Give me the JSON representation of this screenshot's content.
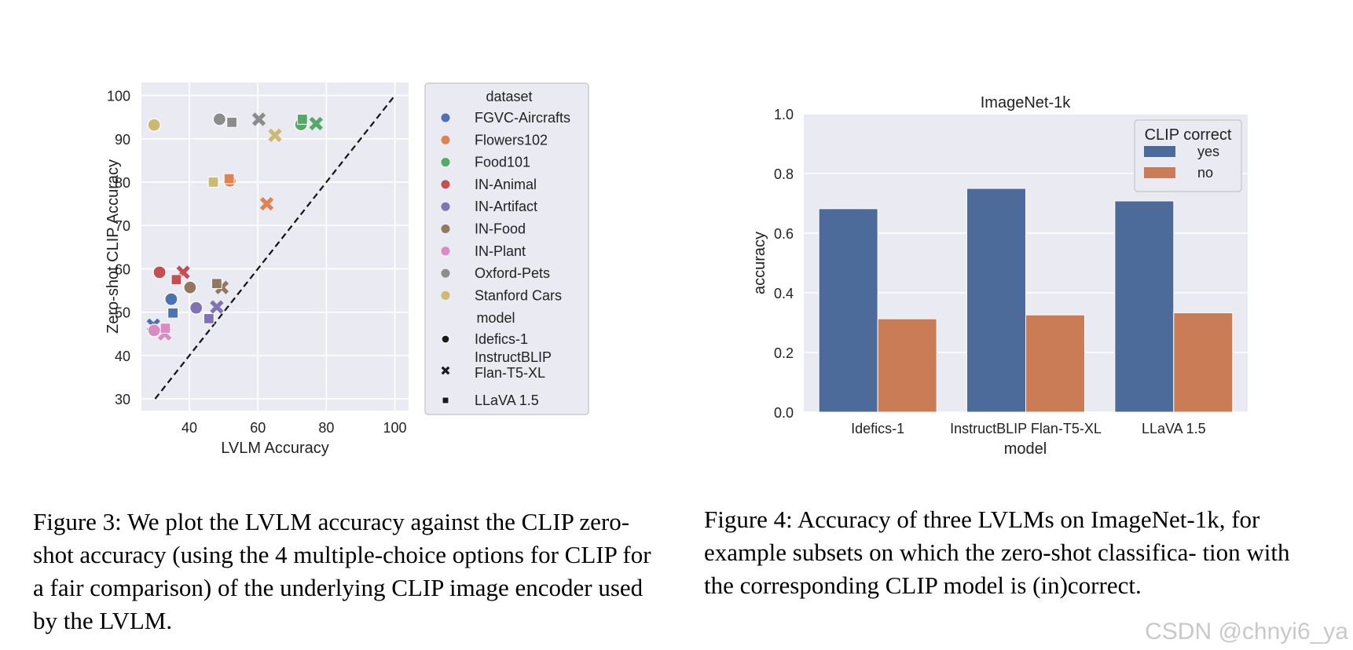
{
  "chart_data": [
    {
      "type": "scatter",
      "xlabel": "LVLM Accuracy",
      "ylabel": "Zero-shot CLIP Accuracy",
      "xlim": [
        26,
        104
      ],
      "ylim": [
        27.3,
        103
      ],
      "xticks": [
        40,
        60,
        80,
        100
      ],
      "yticks": [
        30,
        40,
        50,
        60,
        70,
        80,
        90,
        100
      ],
      "grid": true,
      "legend": {
        "placement": "right, outside",
        "dataset_title": "dataset",
        "model_title": "model",
        "datasets": [
          {
            "name": "FGVC-Aircrafts",
            "color": "#4c72b0"
          },
          {
            "name": "Flowers102",
            "color": "#dd8452"
          },
          {
            "name": "Food101",
            "color": "#55a868"
          },
          {
            "name": "IN-Animal",
            "color": "#c44e52"
          },
          {
            "name": "IN-Artifact",
            "color": "#8172b3"
          },
          {
            "name": "IN-Food",
            "color": "#937860"
          },
          {
            "name": "IN-Plant",
            "color": "#da8bc3"
          },
          {
            "name": "Oxford-Pets",
            "color": "#8c8c8c"
          },
          {
            "name": "Stanford Cars",
            "color": "#ccb974"
          }
        ],
        "models": [
          {
            "name": "Idefics-1",
            "marker": "circle"
          },
          {
            "name": "InstructBLIP\nFlan-T5-XL",
            "marker": "x"
          },
          {
            "name": "LLaVA 1.5",
            "marker": "square"
          }
        ]
      },
      "diagonal": {
        "from": [
          30,
          30
        ],
        "to": [
          100,
          100
        ],
        "style": "dashed"
      },
      "points": [
        {
          "dataset": "FGVC-Aircrafts",
          "model": "Idefics-1",
          "x": 34.7,
          "y": 53
        },
        {
          "dataset": "FGVC-Aircrafts",
          "model": "InstructBLIP\nFlan-T5-XL",
          "x": 29.5,
          "y": 47
        },
        {
          "dataset": "FGVC-Aircrafts",
          "model": "LLaVA 1.5",
          "x": 35.2,
          "y": 49.8
        },
        {
          "dataset": "Flowers102",
          "model": "Idefics-1",
          "x": 51.8,
          "y": 80.3
        },
        {
          "dataset": "Flowers102",
          "model": "InstructBLIP\nFlan-T5-XL",
          "x": 62.6,
          "y": 75
        },
        {
          "dataset": "Flowers102",
          "model": "LLaVA 1.5",
          "x": 51.6,
          "y": 80.8
        },
        {
          "dataset": "Food101",
          "model": "Idefics-1",
          "x": 72.6,
          "y": 93.3
        },
        {
          "dataset": "Food101",
          "model": "InstructBLIP\nFlan-T5-XL",
          "x": 77,
          "y": 93.5
        },
        {
          "dataset": "Food101",
          "model": "LLaVA 1.5",
          "x": 73,
          "y": 94.5
        },
        {
          "dataset": "IN-Animal",
          "model": "Idefics-1",
          "x": 31.3,
          "y": 59.2
        },
        {
          "dataset": "IN-Animal",
          "model": "InstructBLIP\nFlan-T5-XL",
          "x": 38.2,
          "y": 59.2
        },
        {
          "dataset": "IN-Animal",
          "model": "LLaVA 1.5",
          "x": 36.2,
          "y": 57.5
        },
        {
          "dataset": "IN-Artifact",
          "model": "Idefics-1",
          "x": 42,
          "y": 51
        },
        {
          "dataset": "IN-Artifact",
          "model": "InstructBLIP\nFlan-T5-XL",
          "x": 48,
          "y": 51.2
        },
        {
          "dataset": "IN-Artifact",
          "model": "LLaVA 1.5",
          "x": 45.7,
          "y": 48.5
        },
        {
          "dataset": "IN-Food",
          "model": "Idefics-1",
          "x": 40.2,
          "y": 55.7
        },
        {
          "dataset": "IN-Food",
          "model": "InstructBLIP\nFlan-T5-XL",
          "x": 49.5,
          "y": 55.7
        },
        {
          "dataset": "IN-Food",
          "model": "LLaVA 1.5",
          "x": 48,
          "y": 56.6
        },
        {
          "dataset": "IN-Plant",
          "model": "Idefics-1",
          "x": 29.7,
          "y": 45.8
        },
        {
          "dataset": "IN-Plant",
          "model": "InstructBLIP\nFlan-T5-XL",
          "x": 32.8,
          "y": 45
        },
        {
          "dataset": "IN-Plant",
          "model": "LLaVA 1.5",
          "x": 33,
          "y": 46.3
        },
        {
          "dataset": "Oxford-Pets",
          "model": "Idefics-1",
          "x": 48.8,
          "y": 94.5
        },
        {
          "dataset": "Oxford-Pets",
          "model": "InstructBLIP\nFlan-T5-XL",
          "x": 60.3,
          "y": 94.5
        },
        {
          "dataset": "Oxford-Pets",
          "model": "LLaVA 1.5",
          "x": 52.4,
          "y": 93.8
        },
        {
          "dataset": "Stanford Cars",
          "model": "Idefics-1",
          "x": 29.7,
          "y": 93.2
        },
        {
          "dataset": "Stanford Cars",
          "model": "InstructBLIP\nFlan-T5-XL",
          "x": 65,
          "y": 90.8
        },
        {
          "dataset": "Stanford Cars",
          "model": "LLaVA 1.5",
          "x": 47,
          "y": 80
        }
      ]
    },
    {
      "type": "bar",
      "title": "ImageNet-1k",
      "xlabel": "model",
      "ylabel": "accuracy",
      "categories": [
        "Idefics-1",
        "InstructBLIP Flan-T5-XL",
        "LLaVA 1.5"
      ],
      "ylim": [
        0,
        1.0
      ],
      "yticks": [
        "0.0",
        "0.2",
        "0.4",
        "0.6",
        "0.8",
        "1.0"
      ],
      "grid": true,
      "legend": {
        "placement": "top-right",
        "title": "CLIP correct"
      },
      "series": [
        {
          "name": "yes",
          "color": "#4c6a9a",
          "values": [
            0.682,
            0.75,
            0.708
          ]
        },
        {
          "name": "no",
          "color": "#c97c56",
          "values": [
            0.313,
            0.326,
            0.333
          ]
        }
      ]
    }
  ],
  "captions": {
    "fig3": "Figure 3: We plot the LVLM accuracy against the CLIP zero-shot accuracy (using the 4 multiple-choice options for CLIP for a fair comparison) of the underlying CLIP image encoder used by the LVLM.",
    "fig4": "Figure 4: Accuracy of three LVLMs on ImageNet-1k, for example subsets on which the zero-shot classifica- tion with the corresponding CLIP model is (in)correct."
  },
  "watermark": "CSDN @chnyi6_ya"
}
